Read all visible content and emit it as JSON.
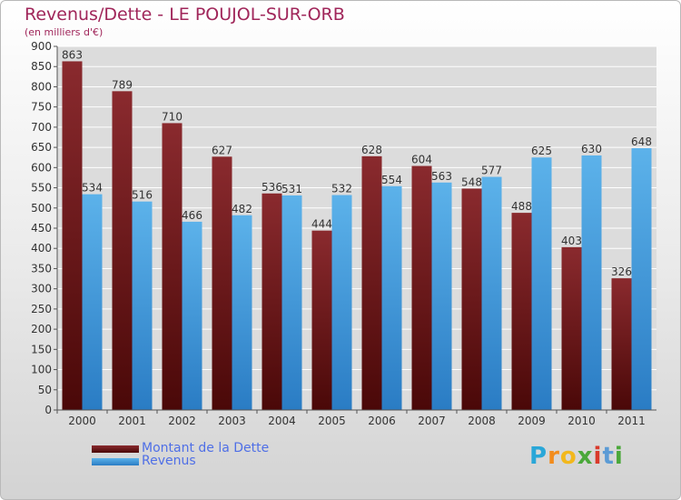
{
  "title": "Revenus/Dette - LE POUJOL-SUR-ORB",
  "subtitle": "(en milliers d'€)",
  "logo": {
    "letters": [
      "P",
      "r",
      "o",
      "x",
      "i",
      "t",
      "i"
    ],
    "colors": [
      "#2aa7d8",
      "#f28c1c",
      "#f2b81c",
      "#4aa83a",
      "#d93a2b",
      "#5b9bd5",
      "#4aa83a"
    ]
  },
  "colors": {
    "dette": "#7a1c1f",
    "revenus": "#4da3e0",
    "title": "#a0265a",
    "legend_text": "#4f6fe6"
  },
  "chart_data": {
    "type": "bar",
    "categories": [
      "2000",
      "2001",
      "2002",
      "2003",
      "2004",
      "2005",
      "2006",
      "2007",
      "2008",
      "2009",
      "2010",
      "2011"
    ],
    "series": [
      {
        "name": "Montant de la Dette",
        "values": [
          863,
          789,
          710,
          627,
          536,
          444,
          628,
          604,
          548,
          488,
          403,
          326
        ],
        "labels": [
          "863",
          "789",
          "710",
          "627",
          "536",
          "444",
          "628",
          "604",
          "548",
          "488",
          "403",
          "326"
        ]
      },
      {
        "name": "Revenus",
        "values": [
          534,
          516,
          466,
          482,
          531,
          532,
          554,
          563,
          577,
          625,
          630,
          648
        ],
        "labels": [
          "534",
          "516",
          "466",
          "482",
          "531",
          "532",
          "554",
          "563",
          "577",
          "625",
          "630",
          "648"
        ]
      }
    ],
    "yticks": [
      "0",
      "50",
      "100",
      "150",
      "200",
      "250",
      "300",
      "350",
      "400",
      "450",
      "500",
      "550",
      "600",
      "650",
      "700",
      "750",
      "800",
      "850",
      "900"
    ],
    "ylim": [
      0,
      900
    ],
    "grid": true,
    "legend": "bottom-left"
  }
}
